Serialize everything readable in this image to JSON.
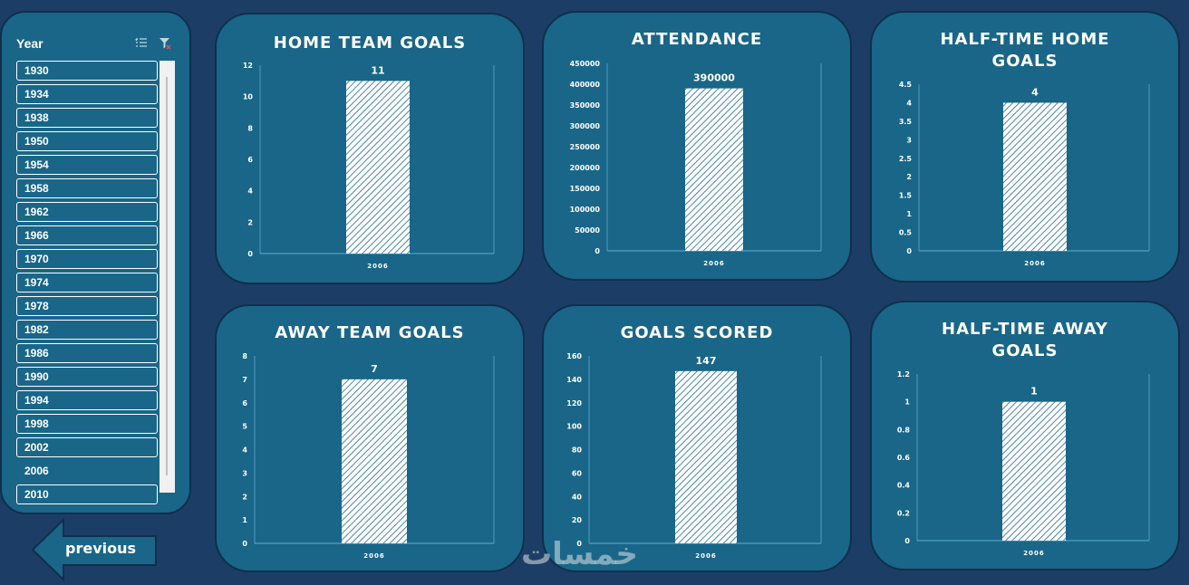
{
  "slicer": {
    "title": "Year",
    "items": [
      "1930",
      "1934",
      "1938",
      "1950",
      "1954",
      "1958",
      "1962",
      "1966",
      "1970",
      "1974",
      "1978",
      "1982",
      "1986",
      "1990",
      "1994",
      "1998",
      "2002",
      "2006",
      "2010"
    ],
    "selected": "2006"
  },
  "nav": {
    "previous_label": "previous"
  },
  "watermark": "خمسات",
  "colors": {
    "background": "#1c3e66",
    "card": "#196688",
    "border": "#0f2f4d",
    "bar_hatch": "#1e6a90"
  },
  "chart_data": [
    {
      "id": "home",
      "type": "bar",
      "title": "HOME TEAM GOALS",
      "categories": [
        "2006"
      ],
      "values": [
        11
      ],
      "ylim": [
        0,
        12
      ],
      "yticks": [
        0,
        2,
        4,
        6,
        8,
        10,
        12
      ]
    },
    {
      "id": "attendance",
      "type": "bar",
      "title": "ATTENDANCE",
      "categories": [
        "2006"
      ],
      "values": [
        390000
      ],
      "ylim": [
        0,
        450000
      ],
      "yticks": [
        0,
        50000,
        100000,
        150000,
        200000,
        250000,
        300000,
        350000,
        400000,
        450000
      ]
    },
    {
      "id": "ht-home",
      "type": "bar",
      "title": "HALF-TIME HOME GOALS",
      "categories": [
        "2006"
      ],
      "values": [
        4
      ],
      "ylim": [
        0,
        4.5
      ],
      "yticks": [
        0,
        0.5,
        1,
        1.5,
        2,
        2.5,
        3,
        3.5,
        4,
        4.5
      ]
    },
    {
      "id": "away",
      "type": "bar",
      "title": "AWAY TEAM GOALS",
      "categories": [
        "2006"
      ],
      "values": [
        7
      ],
      "ylim": [
        0,
        8
      ],
      "yticks": [
        0,
        1,
        2,
        3,
        4,
        5,
        6,
        7,
        8
      ]
    },
    {
      "id": "goals",
      "type": "bar",
      "title": "GOALS SCORED",
      "categories": [
        "2006"
      ],
      "values": [
        147
      ],
      "ylim": [
        0,
        160
      ],
      "yticks": [
        0,
        20,
        40,
        60,
        80,
        100,
        120,
        140,
        160
      ]
    },
    {
      "id": "ht-away",
      "type": "bar",
      "title": "HALF-TIME AWAY GOALS",
      "categories": [
        "2006"
      ],
      "values": [
        1
      ],
      "ylim": [
        0,
        1.2
      ],
      "yticks": [
        0,
        0.2,
        0.4,
        0.6,
        0.8,
        1,
        1.2
      ]
    }
  ]
}
